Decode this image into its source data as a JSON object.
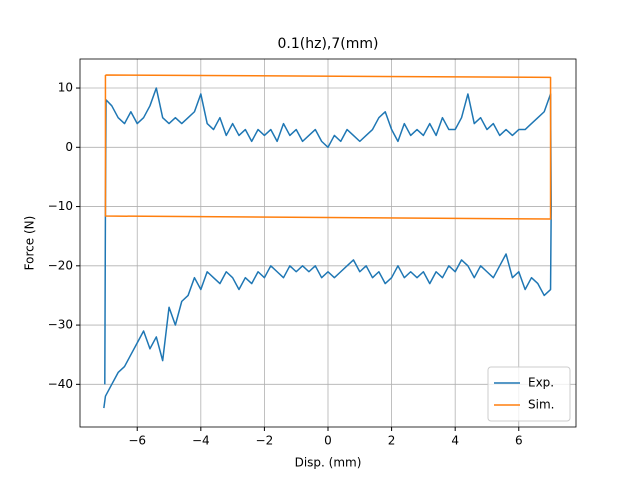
{
  "chart_data": {
    "type": "line",
    "title": "0.1(hz),7(mm)",
    "x_label": "Disp. (mm)",
    "y_label": "Force (N)",
    "xlim": [
      -7.8,
      7.8
    ],
    "ylim": [
      -47.2,
      14.9
    ],
    "xticks": [
      {
        "value": -6,
        "label": "−6"
      },
      {
        "value": -4,
        "label": "−4"
      },
      {
        "value": -2,
        "label": "−2"
      },
      0,
      2,
      4,
      6
    ],
    "yticks": [
      {
        "value": -40,
        "label": "−40"
      },
      {
        "value": -30,
        "label": "−30"
      },
      {
        "value": -20,
        "label": "−20"
      },
      {
        "value": -10,
        "label": "−10"
      },
      0,
      10
    ],
    "grid": true,
    "legend": "lower right",
    "series": [
      {
        "name": "Exp.",
        "color": "#1f77b4",
        "x": [
          -7.02,
          -7.0,
          -6.98,
          -6.8,
          -6.6,
          -6.4,
          -6.2,
          -6.0,
          -5.8,
          -5.6,
          -5.4,
          -5.2,
          -5.0,
          -4.8,
          -4.6,
          -4.4,
          -4.2,
          -4.0,
          -3.8,
          -3.6,
          -3.4,
          -3.2,
          -3.0,
          -2.8,
          -2.6,
          -2.4,
          -2.2,
          -2.0,
          -1.8,
          -1.6,
          -1.4,
          -1.2,
          -1.0,
          -0.8,
          -0.6,
          -0.4,
          -0.2,
          0,
          0.2,
          0.4,
          0.6,
          0.8,
          1.0,
          1.2,
          1.4,
          1.6,
          1.8,
          2.0,
          2.2,
          2.4,
          2.6,
          2.8,
          3.0,
          3.2,
          3.4,
          3.6,
          3.8,
          4.0,
          4.2,
          4.4,
          4.6,
          4.8,
          5.0,
          5.2,
          5.4,
          5.6,
          5.8,
          6.0,
          6.2,
          6.4,
          6.6,
          6.8,
          7.0,
          7.02,
          7.0,
          6.8,
          6.6,
          6.4,
          6.2,
          6.0,
          5.8,
          5.6,
          5.4,
          5.2,
          5.0,
          4.8,
          4.6,
          4.4,
          4.2,
          4.0,
          3.8,
          3.6,
          3.4,
          3.2,
          3.0,
          2.8,
          2.6,
          2.4,
          2.2,
          2.0,
          1.8,
          1.6,
          1.4,
          1.2,
          1.0,
          0.8,
          0.6,
          0.4,
          0.2,
          0,
          -0.2,
          -0.4,
          -0.6,
          -0.8,
          -1.0,
          -1.2,
          -1.4,
          -1.6,
          -1.8,
          -2.0,
          -2.2,
          -2.4,
          -2.6,
          -2.8,
          -3.0,
          -3.2,
          -3.4,
          -3.6,
          -3.8,
          -4.0,
          -4.2,
          -4.4,
          -4.6,
          -4.8,
          -5.0,
          -5.2,
          -5.4,
          -5.6,
          -5.8,
          -6.0,
          -6.2,
          -6.4,
          -6.6,
          -6.8,
          -7.0,
          -7.05
        ],
        "values": [
          -40,
          -10,
          8,
          7,
          5,
          4,
          6,
          4,
          5,
          7,
          10,
          5,
          4,
          5,
          4,
          5,
          6,
          9,
          4,
          3,
          5,
          2,
          4,
          2,
          3,
          1,
          3,
          2,
          3,
          1,
          4,
          2,
          3,
          1,
          2,
          3,
          1,
          0,
          2,
          1,
          3,
          2,
          1,
          2,
          3,
          5,
          6,
          3,
          1,
          4,
          2,
          3,
          2,
          4,
          2,
          5,
          3,
          3,
          5,
          9,
          4,
          5,
          3,
          4,
          2,
          3,
          2,
          3,
          3,
          4,
          5,
          6,
          9,
          -10,
          -24,
          -25,
          -23,
          -22,
          -24,
          -21,
          -22,
          -18,
          -20,
          -22,
          -21,
          -20,
          -22,
          -20,
          -19,
          -21,
          -20,
          -22,
          -21,
          -23,
          -21,
          -22,
          -21,
          -22,
          -20,
          -22,
          -23,
          -21,
          -22,
          -20,
          -21,
          -19,
          -20,
          -21,
          -22,
          -21,
          -22,
          -20,
          -21,
          -20,
          -21,
          -20,
          -22,
          -21,
          -20,
          -22,
          -21,
          -23,
          -22,
          -24,
          -22,
          -21,
          -23,
          -22,
          -21,
          -24,
          -22,
          -25,
          -26,
          -30,
          -27,
          -36,
          -32,
          -34,
          -31,
          -33,
          -35,
          -37,
          -38,
          -40,
          -42,
          -44
        ]
      },
      {
        "name": "Sim.",
        "color": "#ff7f0e",
        "x": [
          -7.0,
          7.0,
          7.0,
          -7.0,
          -7.0
        ],
        "values": [
          12.2,
          11.8,
          -12.1,
          -11.6,
          12.2
        ]
      }
    ]
  }
}
